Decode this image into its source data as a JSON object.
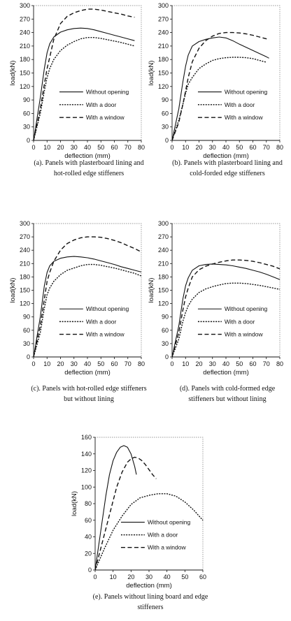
{
  "chart_data": [
    {
      "type": "line",
      "caption": [
        "(a). Panels with plasterboard lining and",
        "hot-rolled edge stiffeners"
      ],
      "xlabel": "deflection (mm)",
      "ylabel": "load(kN)",
      "xlim": [
        0,
        80
      ],
      "ylim": [
        0,
        300
      ],
      "xticks": [
        "0",
        "10",
        "20",
        "30",
        "40",
        "50",
        "60",
        "70",
        "80"
      ],
      "yticks": [
        "0",
        "30",
        "60",
        "90",
        "120",
        "150",
        "180",
        "210",
        "240",
        "270",
        "300"
      ],
      "legend_position": "lower-right",
      "series": [
        {
          "name": "Without opening",
          "style": "solid",
          "x": [
            0,
            5,
            8,
            10,
            12,
            15,
            20,
            25,
            30,
            35,
            40,
            45,
            50,
            55,
            60,
            65,
            70,
            75
          ],
          "y": [
            0,
            95,
            160,
            195,
            215,
            230,
            241,
            246,
            249,
            250,
            249,
            246,
            242,
            238,
            234,
            230,
            226,
            222
          ]
        },
        {
          "name": "With a door",
          "style": "dotted",
          "x": [
            0,
            5,
            8,
            10,
            12,
            15,
            20,
            25,
            30,
            35,
            40,
            45,
            50,
            55,
            60,
            65,
            70,
            75
          ],
          "y": [
            0,
            60,
            110,
            140,
            160,
            180,
            200,
            212,
            220,
            226,
            229,
            229,
            227,
            224,
            221,
            218,
            214,
            210
          ]
        },
        {
          "name": "With a window",
          "style": "dashed",
          "x": [
            0,
            5,
            8,
            10,
            12,
            15,
            20,
            25,
            30,
            35,
            40,
            45,
            50,
            55,
            60,
            65,
            70,
            75
          ],
          "y": [
            0,
            70,
            125,
            160,
            185,
            225,
            260,
            276,
            284,
            289,
            292,
            292,
            290,
            287,
            284,
            281,
            277,
            274
          ]
        }
      ]
    },
    {
      "type": "line",
      "caption": [
        "(b). Panels with plasterboard lining and",
        "cold-forded edge stiffeners"
      ],
      "xlabel": "deflection (mm)",
      "ylabel": "load(kN)",
      "xlim": [
        0,
        80
      ],
      "ylim": [
        0,
        300
      ],
      "xticks": [
        "0",
        "10",
        "20",
        "30",
        "40",
        "50",
        "60",
        "70",
        "80"
      ],
      "yticks": [
        "0",
        "30",
        "60",
        "90",
        "120",
        "150",
        "180",
        "210",
        "240",
        "270",
        "300"
      ],
      "legend_position": "lower-right",
      "series": [
        {
          "name": "Without opening",
          "style": "solid",
          "x": [
            0,
            5,
            8,
            10,
            12,
            15,
            20,
            25,
            30,
            35,
            40,
            45,
            50,
            55,
            60,
            65,
            70,
            72
          ],
          "y": [
            0,
            70,
            130,
            165,
            190,
            210,
            220,
            225,
            228,
            230,
            228,
            222,
            214,
            207,
            200,
            193,
            186,
            183
          ]
        },
        {
          "name": "With a door",
          "style": "dotted",
          "x": [
            0,
            5,
            8,
            10,
            12,
            15,
            20,
            25,
            30,
            35,
            40,
            45,
            50,
            55,
            60,
            65,
            70
          ],
          "y": [
            0,
            45,
            80,
            105,
            125,
            140,
            160,
            170,
            178,
            182,
            184,
            185,
            185,
            184,
            182,
            178,
            174
          ]
        },
        {
          "name": "With a window",
          "style": "dashed",
          "x": [
            0,
            5,
            8,
            10,
            12,
            15,
            20,
            25,
            30,
            35,
            40,
            45,
            50,
            55,
            60,
            65,
            70,
            72
          ],
          "y": [
            0,
            40,
            80,
            110,
            140,
            175,
            205,
            222,
            232,
            238,
            240,
            240,
            239,
            237,
            234,
            230,
            226,
            224
          ]
        }
      ]
    },
    {
      "type": "line",
      "caption": [
        "(c). Panels with hot-rolled edge stiffeners",
        "but without lining"
      ],
      "xlabel": "deflection (mm)",
      "ylabel": "load(kN)",
      "xlim": [
        0,
        80
      ],
      "ylim": [
        0,
        300
      ],
      "xticks": [
        "0",
        "10",
        "20",
        "30",
        "40",
        "50",
        "60",
        "70",
        "80"
      ],
      "yticks": [
        "0",
        "30",
        "60",
        "90",
        "120",
        "150",
        "180",
        "210",
        "240",
        "270",
        "300"
      ],
      "legend_position": "lower-right",
      "series": [
        {
          "name": "Without opening",
          "style": "solid",
          "x": [
            0,
            5,
            8,
            10,
            12,
            15,
            20,
            25,
            30,
            35,
            40,
            45,
            50,
            55,
            60,
            65,
            70,
            75,
            80
          ],
          "y": [
            0,
            90,
            160,
            190,
            205,
            215,
            222,
            225,
            226,
            225,
            223,
            220,
            216,
            212,
            208,
            203,
            199,
            195,
            191
          ]
        },
        {
          "name": "With a door",
          "style": "dotted",
          "x": [
            0,
            5,
            8,
            10,
            12,
            15,
            20,
            25,
            30,
            35,
            40,
            45,
            50,
            55,
            60,
            65,
            70,
            75,
            80
          ],
          "y": [
            0,
            55,
            110,
            140,
            155,
            170,
            185,
            195,
            200,
            205,
            208,
            208,
            206,
            203,
            200,
            196,
            192,
            188,
            182
          ]
        },
        {
          "name": "With a window",
          "style": "dashed",
          "x": [
            0,
            5,
            8,
            10,
            12,
            15,
            20,
            25,
            30,
            35,
            40,
            45,
            50,
            55,
            60,
            65,
            70,
            75,
            80
          ],
          "y": [
            0,
            70,
            130,
            170,
            190,
            215,
            240,
            255,
            263,
            268,
            270,
            270,
            269,
            266,
            262,
            257,
            250,
            244,
            236
          ]
        }
      ]
    },
    {
      "type": "line",
      "caption": [
        "(d). Panels with cold-formed edge",
        "stiffeners but without lining"
      ],
      "xlabel": "deflection (mm)",
      "ylabel": "load(kN)",
      "xlim": [
        0,
        80
      ],
      "ylim": [
        0,
        300
      ],
      "xticks": [
        "0",
        "10",
        "20",
        "30",
        "40",
        "50",
        "60",
        "70",
        "80"
      ],
      "yticks": [
        "0",
        "30",
        "60",
        "90",
        "120",
        "150",
        "180",
        "210",
        "240",
        "270",
        "300"
      ],
      "legend_position": "lower-right",
      "series": [
        {
          "name": "Without opening",
          "style": "solid",
          "x": [
            0,
            5,
            8,
            10,
            12,
            15,
            20,
            25,
            30,
            35,
            40,
            45,
            50,
            55,
            60,
            65,
            70,
            75,
            80
          ],
          "y": [
            0,
            70,
            130,
            160,
            178,
            195,
            205,
            208,
            209,
            208,
            207,
            205,
            202,
            199,
            195,
            191,
            186,
            180,
            174
          ]
        },
        {
          "name": "With a door",
          "style": "dotted",
          "x": [
            0,
            5,
            8,
            10,
            12,
            15,
            20,
            25,
            30,
            35,
            40,
            45,
            50,
            55,
            60,
            65,
            70,
            75,
            80
          ],
          "y": [
            0,
            40,
            80,
            100,
            115,
            130,
            145,
            153,
            158,
            162,
            165,
            166,
            166,
            165,
            163,
            161,
            158,
            155,
            152
          ]
        },
        {
          "name": "With a window",
          "style": "dashed",
          "x": [
            0,
            5,
            8,
            10,
            12,
            15,
            20,
            25,
            30,
            35,
            40,
            45,
            50,
            55,
            60,
            65,
            70,
            75,
            80
          ],
          "y": [
            0,
            55,
            105,
            135,
            155,
            180,
            196,
            204,
            209,
            213,
            216,
            218,
            218,
            217,
            215,
            212,
            208,
            204,
            198
          ]
        }
      ]
    },
    {
      "type": "line",
      "caption": [
        "(e). Panels without lining board and edge",
        "stiffeners"
      ],
      "xlabel": "deflection (mm)",
      "ylabel": "load(kN)",
      "xlim": [
        0,
        60
      ],
      "ylim": [
        0,
        160
      ],
      "xticks": [
        "0",
        "10",
        "20",
        "30",
        "40",
        "50",
        "60"
      ],
      "yticks": [
        "0",
        "20",
        "40",
        "60",
        "80",
        "100",
        "120",
        "140",
        "160"
      ],
      "legend_position": "lower-right",
      "series": [
        {
          "name": "Without opening",
          "style": "solid",
          "x": [
            0,
            3,
            6,
            8,
            10,
            12,
            14,
            16,
            18,
            20,
            22,
            23
          ],
          "y": [
            0,
            45,
            90,
            115,
            132,
            142,
            148,
            150,
            148,
            140,
            125,
            115
          ]
        },
        {
          "name": "With a door",
          "style": "dotted",
          "x": [
            0,
            5,
            10,
            15,
            20,
            25,
            30,
            35,
            40,
            45,
            50,
            55,
            60
          ],
          "y": [
            0,
            25,
            48,
            65,
            79,
            87,
            90,
            92,
            92,
            89,
            82,
            72,
            60
          ]
        },
        {
          "name": "With a window",
          "style": "dashed",
          "x": [
            0,
            3,
            6,
            9,
            12,
            15,
            18,
            20,
            22,
            24,
            26,
            28,
            30,
            32,
            34
          ],
          "y": [
            0,
            25,
            50,
            75,
            100,
            118,
            130,
            134,
            136,
            135,
            132,
            127,
            121,
            115,
            110
          ]
        }
      ]
    }
  ]
}
